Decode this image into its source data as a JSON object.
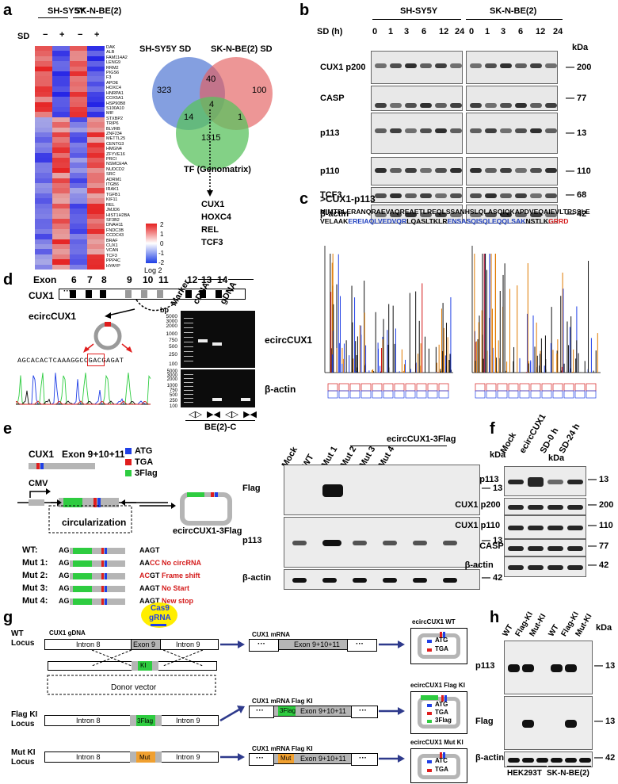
{
  "panels": [
    "a",
    "b",
    "c",
    "d",
    "e",
    "f",
    "g",
    "h"
  ],
  "a": {
    "cell_lines": [
      "SH-SY5Y",
      "SK-N-BE(2)"
    ],
    "sd_label": "SD",
    "sd_marks": [
      "−",
      "+",
      "−",
      "+"
    ],
    "genes": [
      "DAK",
      "ALB",
      "FAM114A2",
      "LENG9",
      "RRM2",
      "PIGS6",
      "F3",
      "APOE",
      "HOXC4",
      "HNRPA1",
      "COX5A1",
      "HSP90B8",
      "S100A10",
      "MIF",
      "STXBP2",
      "TRIP6",
      "BLVRB",
      "ZNF234",
      "METTL25",
      "CENTG3",
      "HMGN4",
      "ZFYVE16",
      "PRCI",
      "NSMCE4A",
      "NUDCD2",
      "SRC",
      "ADRM1",
      "ITGB6",
      "IRAK1",
      "TGFB1",
      "KIF11",
      "REL",
      "JMJD6",
      "HIST1H2BA",
      "SF3B2",
      "DNAH11",
      "FNDC3B",
      "CCDC43",
      "BRAF",
      "CUX1",
      "VCAN",
      "TCF3",
      "PPP4C",
      "HYAYP"
    ],
    "legend_ticks": [
      "2",
      "1",
      "0",
      "-1",
      "-2"
    ],
    "legend_title": "Log 2",
    "venn": {
      "labels": [
        "SH-SY5Y SD",
        "SK-N-BE(2) SD"
      ],
      "counts": {
        "a_only": "323",
        "ab": "40",
        "b_only": "100",
        "center": "4",
        "ac": "14",
        "bc": "1",
        "c_only": "1315"
      },
      "tf_label": "TF (Genomatrix)",
      "tf_genes": [
        "CUX1",
        "HOXC4",
        "REL",
        "TCF3"
      ]
    }
  },
  "b": {
    "groups": [
      "SH-SY5Y",
      "SK-N-BE(2)"
    ],
    "sd_title": "SD (h)",
    "timepoints": [
      "0",
      "1",
      "3",
      "6",
      "12",
      "24"
    ],
    "kda": "kDa",
    "rows": [
      {
        "label": "CUX1 p200",
        "mw": "200"
      },
      {
        "label": "CASP",
        "mw": "77"
      },
      {
        "label": "p113",
        "mw": "13"
      },
      {
        "label": "p110",
        "mw": "110"
      },
      {
        "label": "TCF3",
        "mw": "68"
      },
      {
        "label": "β-actin",
        "mw": "42"
      }
    ]
  },
  "c": {
    "title": ">CUX1-p113",
    "seq_line1": "MIMTDLERANQRAEVAQREAETLREQLSSANHSLQLASQIQKAPDVEQAIEVLTRSSLE",
    "seq_line2_a": "VELAAK",
    "seq_line2_b": "EREIAQLVEDVQR",
    "seq_line2_c": "LQASLTKLR",
    "seq_line2_d": "ENSASQISQLEQQLSAK",
    "seq_line2_e": "NSTLK",
    "seq_line2_f": "GRRD",
    "colors": {
      "blue": "#1f3fbf",
      "red": "#d41a1a",
      "ms_orange": "#e07a00"
    }
  },
  "d": {
    "exon_label": "Exon",
    "exons": [
      "6",
      "7",
      "8",
      "9",
      "10",
      "11",
      "12",
      "13",
      "14"
    ],
    "gene": "CUX1",
    "dots": "···",
    "circ_label": "ecircCUX1",
    "seq": "AGCACACTCAAAGGCCGACGAGAT",
    "gel": {
      "bp": "bp",
      "marker": "Marker",
      "lanes": [
        "cDNA",
        "gDNA"
      ],
      "ladder": [
        "5000",
        "3000",
        "2000",
        "1000",
        "750",
        "500",
        "250",
        "100"
      ],
      "rows": [
        "ecircCUX1",
        "β-actin"
      ],
      "sample": "BE(2)-C"
    }
  },
  "e": {
    "gene": "CUX1",
    "construct": "Exon 9+10+11",
    "legend": [
      "ATG",
      "TGA",
      "3Flag"
    ],
    "cmv": "CMV",
    "circ": "circularization",
    "product": "ecircCUX1-3Flag",
    "variants": [
      {
        "name": "WT:",
        "left": "AG",
        "right": "AAGT",
        "note": ""
      },
      {
        "name": "Mut 1:",
        "left": "AG",
        "right": "AA",
        "right_red": "CC",
        "note": "No circRNA"
      },
      {
        "name": "Mut 2:",
        "left": "AG",
        "right": "AAGT",
        "right_red": "AC",
        "note": "Frame shift"
      },
      {
        "name": "Mut 3:",
        "left": "AG",
        "right": "AAGT",
        "note": "No Start"
      },
      {
        "name": "Mut 4:",
        "left": "AG",
        "right": "AAGT",
        "note": "New stop"
      }
    ],
    "blot_header": "ecircCUX1-3Flag",
    "lanes": [
      "Mock",
      "WT",
      "Mut 1",
      "Mut 2",
      "Mut 3",
      "Mut 4"
    ],
    "kda": "kDa",
    "rows": [
      {
        "label": "Flag",
        "mw": "13"
      },
      {
        "label": "p113",
        "mw": "13"
      },
      {
        "label": "β-actin",
        "mw": "42"
      }
    ]
  },
  "f": {
    "lanes": [
      "Mock",
      "ecircCUX1",
      "SD-0 h",
      "SD-24 h"
    ],
    "kda": "kDa",
    "rows": [
      {
        "label": "p113",
        "mw": "13"
      },
      {
        "label": "CUX1 p200",
        "mw": "200"
      },
      {
        "label": "CUX1 p110",
        "mw": "110"
      },
      {
        "label": "CASP",
        "mw": "77"
      },
      {
        "label": "β-actin",
        "mw": "42"
      }
    ]
  },
  "g": {
    "cas9": "Cas9",
    "grna": "gRNA",
    "wt_locus": [
      "WT",
      "Locus"
    ],
    "gdna": "CUX1 gDNA",
    "intron8": "Intron 8",
    "exon9": "Exon 9",
    "intron9": "Intron 9",
    "ki": "KI",
    "donor": "Donor vector",
    "flag_locus": [
      "Flag KI",
      "Locus"
    ],
    "mut_locus": [
      "Mut KI",
      "Locus"
    ],
    "flag3": "3Flag",
    "mut": "Mut",
    "mrna_wt": "CUX1 mRNA",
    "mrna_flag": "CUX1 mRNA Flag KI",
    "exon91011": "Exon 9+10+11",
    "dots": "···",
    "circ_wt": "ecircCUX1 WT",
    "circ_flag": "ecircCUX1 Flag KI",
    "circ_mut": "ecircCUX1 Mut KI",
    "atg": "ATG",
    "tga": "TGA",
    "atc": "ATC"
  },
  "h": {
    "lanes": [
      "WT",
      "Flag-KI",
      "Mut-KI",
      "WT",
      "Flag-KI",
      "Mut-KI"
    ],
    "kda": "kDa",
    "rows": [
      {
        "label": "p113",
        "mw": "13"
      },
      {
        "label": "Flag",
        "mw": "13"
      },
      {
        "label": "β-actin",
        "mw": "42"
      }
    ],
    "cells": [
      "HEK293T",
      "SK-N-BE(2)"
    ]
  }
}
